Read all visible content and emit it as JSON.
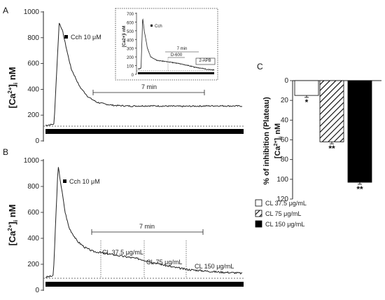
{
  "chart_data": [
    {
      "panel": "A",
      "type": "line",
      "ylabel_main": "[Ca",
      "ylabel_sup": "2+",
      "ylabel_end": "]",
      "ylabel_sub": "i",
      "ylabel_unit": " nM",
      "ylim": [
        0,
        1000
      ],
      "yticks": [
        "0",
        "200",
        "400",
        "600",
        "800",
        "1000"
      ],
      "legend": "Cch 10 μM",
      "time_bar_label": "7 min",
      "baseline": 120,
      "series": [
        {
          "x": [
            0,
            1,
            1.6,
            2,
            2.5,
            3,
            4,
            5,
            6,
            7,
            8,
            10,
            12,
            14,
            16,
            18,
            20,
            23
          ],
          "y": [
            120,
            130,
            920,
            850,
            700,
            560,
            420,
            340,
            300,
            285,
            275,
            270,
            272,
            270,
            268,
            270,
            272,
            270
          ]
        }
      ],
      "inset": {
        "ylabel": "[Ca2+]i nM",
        "yticks": [
          "0",
          "100",
          "200",
          "300",
          "400",
          "500",
          "600",
          "700"
        ],
        "legend": "Cch",
        "time_label": "7 min",
        "d600_label": "D-600",
        "apb_label": "2-APB",
        "series": [
          {
            "x": [
              0,
              1,
              1.5,
              2,
              3,
              4,
              6,
              8,
              10,
              12,
              14,
              16,
              18,
              20,
              22,
              24
            ],
            "y": [
              60,
              70,
              650,
              500,
              300,
              200,
              160,
              150,
              140,
              130,
              115,
              100,
              80,
              70,
              55,
              50
            ]
          }
        ]
      }
    },
    {
      "panel": "B",
      "type": "line",
      "ylabel_main": "[Ca",
      "ylabel_sup": "2+",
      "ylabel_end": "]",
      "ylabel_sub": "i",
      "ylabel_unit": " nM",
      "ylim": [
        0,
        1000
      ],
      "yticks": [
        "0",
        "200",
        "400",
        "600",
        "800",
        "1000"
      ],
      "legend": "Cch 10 μM",
      "time_bar_label": "7 min",
      "annotations": [
        "CL 37.5 μg/mL",
        "CL 75 μg/mL",
        "CL 150 μg/mL"
      ],
      "series": [
        {
          "x": [
            0,
            1,
            1.6,
            2,
            2.5,
            3,
            4,
            5,
            6,
            8,
            10,
            12,
            14,
            16,
            18,
            20,
            22,
            24,
            25
          ],
          "y": [
            100,
            110,
            960,
            800,
            600,
            480,
            380,
            330,
            300,
            280,
            260,
            240,
            210,
            180,
            160,
            150,
            140,
            135,
            130
          ]
        }
      ]
    },
    {
      "panel": "C",
      "type": "bar",
      "ylabel": "% of inhibition (Plateau)",
      "ylabel2_main": "[Ca",
      "ylabel2_sup": "2+",
      "ylabel2_end": "]",
      "ylabel2_sub": "i",
      "ylabel2_unit": " nM",
      "ylim": [
        0,
        120
      ],
      "yticks": [
        "0",
        "20",
        "40",
        "60",
        "80",
        "100",
        "120"
      ],
      "categories": [
        "CL 37.5 μg/mL",
        "CL 75 μg/mL",
        "CL 150 μg/mL"
      ],
      "values": [
        15,
        62,
        103
      ],
      "errors": [
        2,
        2,
        2
      ],
      "significance": [
        "*",
        "**",
        "**"
      ],
      "fills": [
        "#ffffff",
        "hatch",
        "#000000"
      ]
    }
  ]
}
